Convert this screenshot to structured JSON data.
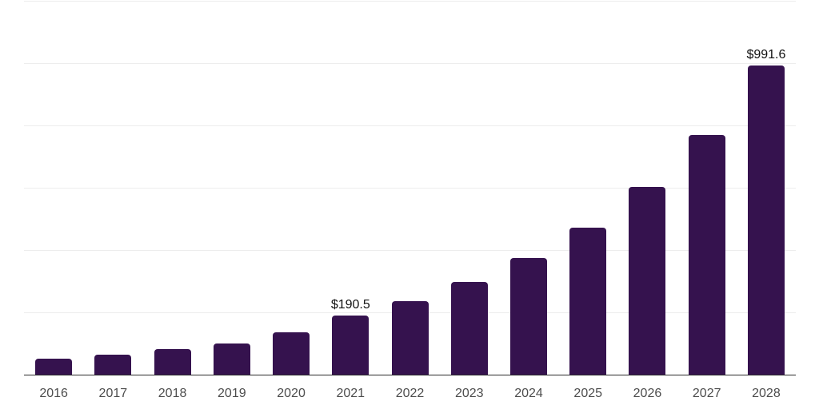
{
  "page": {
    "background_color": "#ffffff"
  },
  "chart_data": {
    "type": "bar",
    "title": "",
    "xlabel": "",
    "ylabel": "",
    "categories": [
      "2016",
      "2017",
      "2018",
      "2019",
      "2020",
      "2021",
      "2022",
      "2023",
      "2024",
      "2025",
      "2026",
      "2027",
      "2028"
    ],
    "values": [
      51,
      64,
      83,
      101,
      136,
      190.5,
      235,
      297,
      374,
      473,
      603,
      769,
      991.6
    ],
    "bar_labels": [
      null,
      null,
      null,
      null,
      null,
      "$190.5",
      null,
      null,
      null,
      null,
      null,
      null,
      "$991.6"
    ],
    "ylim": [
      0,
      1200
    ],
    "gridline_values": [
      200,
      400,
      600,
      800,
      1000,
      1200
    ],
    "grid": "horizontal",
    "legend_position": "none",
    "y_axis_tick_labels_visible": false,
    "colors": {
      "bar_fill": "#35124e",
      "axis_line": "#2b2b2b",
      "gridline": "#ededed",
      "tick_label": "#4d4d4d",
      "data_label": "#111111"
    }
  }
}
